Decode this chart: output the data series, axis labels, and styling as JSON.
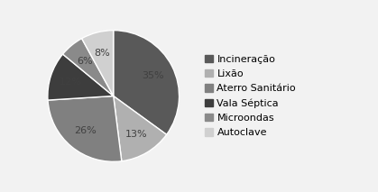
{
  "labels": [
    "Incineração",
    "Lixão",
    "Aterro Sanitário",
    "Vala Séptica",
    "Microondas",
    "Autoclave"
  ],
  "values": [
    35,
    13,
    26,
    12,
    6,
    8
  ],
  "colors": [
    "#595959",
    "#b0b0b0",
    "#808080",
    "#3d3d3d",
    "#8a8a8a",
    "#d0d0d0"
  ],
  "startangle": 90,
  "background_color": "#f2f2f2",
  "legend_fontsize": 8,
  "pct_fontsize": 8
}
